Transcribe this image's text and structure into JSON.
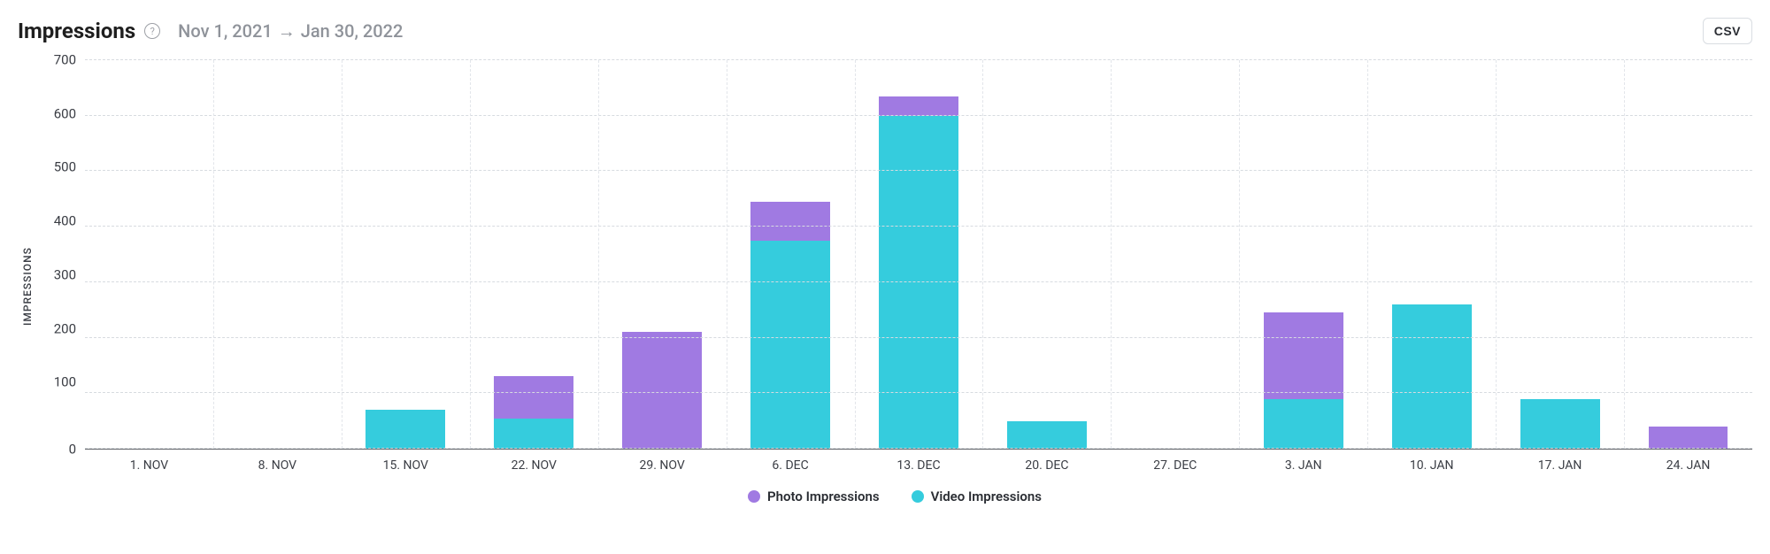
{
  "header": {
    "title": "Impressions",
    "date_from": "Nov 1, 2021",
    "date_to": "Jan 30, 2022",
    "csv_label": "CSV"
  },
  "chart": {
    "type": "stacked-bar",
    "ylabel": "IMPRESSIONS",
    "ylim": [
      0,
      700
    ],
    "ytick_step": 100,
    "yticks": [
      700,
      600,
      500,
      400,
      300,
      200,
      100,
      0
    ],
    "background_color": "#ffffff",
    "grid_color": "#d7dbe0",
    "vgrid_color": "#e2e5ea",
    "axis_font_color": "#3a3d44",
    "bar_width_ratio": 0.62,
    "categories": [
      "1. NOV",
      "8. NOV",
      "15. NOV",
      "22. NOV",
      "29. NOV",
      "6. DEC",
      "13. DEC",
      "20. DEC",
      "27. DEC",
      "3. JAN",
      "10. JAN",
      "17. JAN",
      "24. JAN"
    ],
    "series": [
      {
        "key": "video",
        "label": "Video Impressions",
        "color": "#35ccdd",
        "values": [
          0,
          0,
          70,
          55,
          0,
          375,
          600,
          50,
          0,
          90,
          260,
          90,
          0
        ]
      },
      {
        "key": "photo",
        "label": "Photo Impressions",
        "color": "#a07ae2",
        "values": [
          0,
          0,
          0,
          75,
          210,
          70,
          35,
          0,
          0,
          155,
          0,
          0,
          40
        ]
      }
    ],
    "legend_order": [
      "photo",
      "video"
    ]
  }
}
